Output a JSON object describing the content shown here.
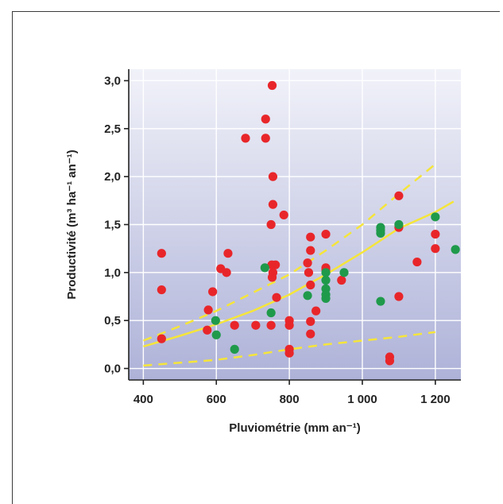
{
  "chart_data": {
    "type": "scatter",
    "xlabel": "Pluviométrie (mm an⁻¹)",
    "ylabel": "Productivité (m³ ha⁻¹ an⁻¹)",
    "xlim": [
      360,
      1270
    ],
    "ylim": [
      -0.12,
      3.12
    ],
    "x_ticks": [
      400,
      600,
      800,
      1000,
      1200
    ],
    "x_tick_labels": [
      "400",
      "600",
      "800",
      "1 000",
      "1 200"
    ],
    "y_ticks": [
      0,
      0.5,
      1,
      1.5,
      2,
      2.5,
      3
    ],
    "y_tick_labels": [
      "0,0",
      "0,5",
      "1,0",
      "1,5",
      "2,0",
      "2,5",
      "3,0"
    ],
    "grid": true,
    "series": [
      {
        "color": "#e8262a",
        "points": [
          [
            450,
            1.2
          ],
          [
            450,
            0.82
          ],
          [
            450,
            0.31
          ],
          [
            578,
            0.61
          ],
          [
            575,
            0.4
          ],
          [
            590,
            0.8
          ],
          [
            612,
            1.04
          ],
          [
            628,
            1.0
          ],
          [
            632,
            1.2
          ],
          [
            650,
            0.45
          ],
          [
            680,
            2.4
          ],
          [
            708,
            0.45
          ],
          [
            735,
            2.6
          ],
          [
            735,
            2.4
          ],
          [
            750,
            1.5
          ],
          [
            752,
            1.08
          ],
          [
            755,
            1.0
          ],
          [
            753,
            0.95
          ],
          [
            750,
            0.45
          ],
          [
            753,
            2.95
          ],
          [
            755,
            2.0
          ],
          [
            755,
            1.71
          ],
          [
            762,
            1.08
          ],
          [
            765,
            0.74
          ],
          [
            785,
            1.6
          ],
          [
            800,
            0.5
          ],
          [
            800,
            0.45
          ],
          [
            800,
            0.2
          ],
          [
            800,
            0.16
          ],
          [
            850,
            1.1
          ],
          [
            853,
            1.0
          ],
          [
            858,
            1.37
          ],
          [
            858,
            1.23
          ],
          [
            858,
            0.87
          ],
          [
            858,
            0.49
          ],
          [
            858,
            0.36
          ],
          [
            873,
            0.6
          ],
          [
            900,
            1.4
          ],
          [
            900,
            1.05
          ],
          [
            900,
            1.03
          ],
          [
            943,
            0.92
          ],
          [
            1075,
            0.12
          ],
          [
            1075,
            0.08
          ],
          [
            1100,
            1.8
          ],
          [
            1100,
            1.47
          ],
          [
            1100,
            0.75
          ],
          [
            1150,
            1.11
          ],
          [
            1200,
            1.4
          ],
          [
            1200,
            1.25
          ]
        ]
      },
      {
        "color": "#1f9a4b",
        "points": [
          [
            598,
            0.5
          ],
          [
            600,
            0.35
          ],
          [
            650,
            0.2
          ],
          [
            733,
            1.05
          ],
          [
            750,
            0.58
          ],
          [
            850,
            0.76
          ],
          [
            900,
            1.0
          ],
          [
            900,
            0.92
          ],
          [
            900,
            0.83
          ],
          [
            900,
            0.77
          ],
          [
            900,
            0.73
          ],
          [
            950,
            1.0
          ],
          [
            1050,
            1.47
          ],
          [
            1050,
            1.44
          ],
          [
            1050,
            1.41
          ],
          [
            1050,
            0.7
          ],
          [
            1100,
            1.5
          ],
          [
            1200,
            1.58
          ],
          [
            1255,
            1.24
          ]
        ]
      }
    ],
    "fit": {
      "color": "#f5e53a",
      "curve": [
        [
          400,
          0.23
        ],
        [
          500,
          0.34
        ],
        [
          600,
          0.46
        ],
        [
          700,
          0.6
        ],
        [
          800,
          0.77
        ],
        [
          900,
          0.98
        ],
        [
          1000,
          1.21
        ],
        [
          1100,
          1.46
        ],
        [
          1200,
          1.63
        ],
        [
          1250,
          1.74
        ]
      ],
      "upper": [
        [
          400,
          0.29
        ],
        [
          500,
          0.44
        ],
        [
          600,
          0.6
        ],
        [
          700,
          0.79
        ],
        [
          800,
          0.98
        ],
        [
          900,
          1.23
        ],
        [
          1000,
          1.5
        ],
        [
          1100,
          1.82
        ],
        [
          1200,
          2.13
        ]
      ],
      "lower": [
        [
          400,
          0.03
        ],
        [
          500,
          0.06
        ],
        [
          600,
          0.09
        ],
        [
          700,
          0.14
        ],
        [
          800,
          0.2
        ],
        [
          900,
          0.25
        ],
        [
          1000,
          0.29
        ],
        [
          1100,
          0.33
        ],
        [
          1200,
          0.38
        ]
      ]
    },
    "colors": {
      "background_top": "#f1f2f9",
      "background_bottom": "#aeb2d8",
      "gridline": "#ffffff",
      "axis": "#222222"
    }
  }
}
